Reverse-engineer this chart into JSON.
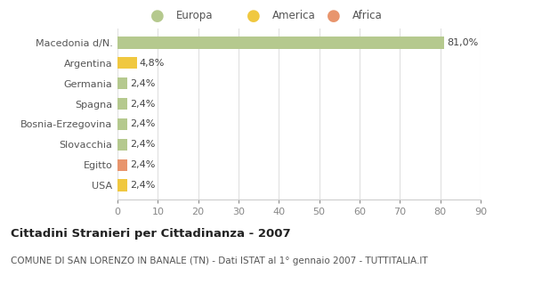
{
  "categories": [
    "USA",
    "Egitto",
    "Slovacchia",
    "Bosnia-Erzegovina",
    "Spagna",
    "Germania",
    "Argentina",
    "Macedonia d/N."
  ],
  "values": [
    2.4,
    2.4,
    2.4,
    2.4,
    2.4,
    2.4,
    4.8,
    81.0
  ],
  "colors": [
    "#f0c840",
    "#e8956d",
    "#b5c98e",
    "#b5c98e",
    "#b5c98e",
    "#b5c98e",
    "#f0c840",
    "#b5c98e"
  ],
  "labels": [
    "2,4%",
    "2,4%",
    "2,4%",
    "2,4%",
    "2,4%",
    "2,4%",
    "4,8%",
    "81,0%"
  ],
  "legend": [
    {
      "label": "Europa",
      "color": "#b5c98e"
    },
    {
      "label": "America",
      "color": "#f0c840"
    },
    {
      "label": "Africa",
      "color": "#e8956d"
    }
  ],
  "xlim": [
    0,
    90
  ],
  "xticks": [
    0,
    10,
    20,
    30,
    40,
    50,
    60,
    70,
    80,
    90
  ],
  "title": "Cittadini Stranieri per Cittadinanza - 2007",
  "subtitle": "COMUNE DI SAN LORENZO IN BANALE (TN) - Dati ISTAT al 1° gennaio 2007 - TUTTITALIA.IT",
  "bg_color": "#ffffff",
  "grid_color": "#e0e0e0",
  "bar_height": 0.6
}
